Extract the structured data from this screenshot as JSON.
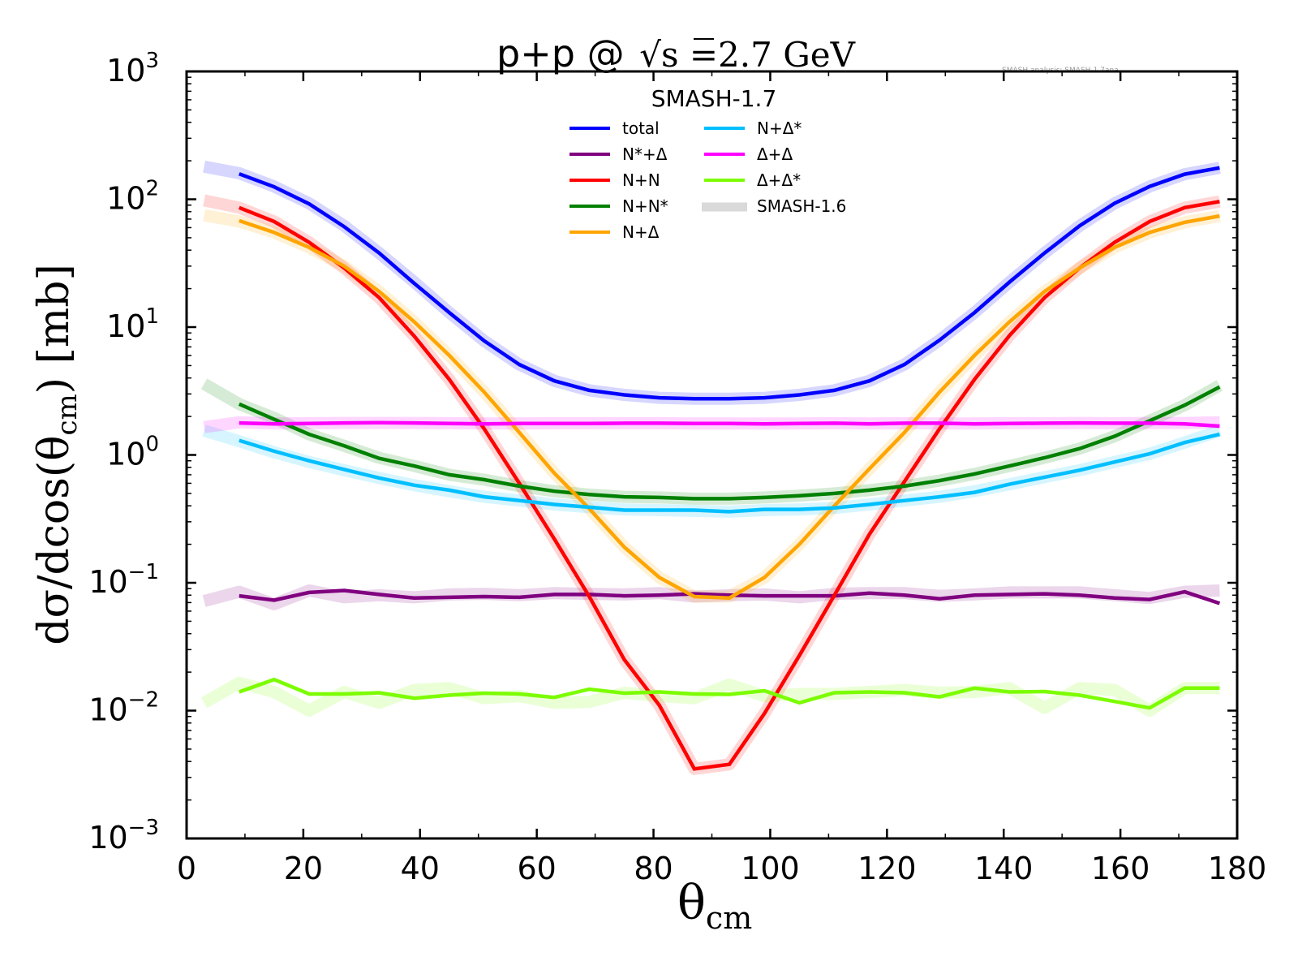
{
  "chart_data": {
    "type": "line",
    "title_prefix": "p+p @ ",
    "title_sqrt": "s",
    "title_suffix": " =2.7 GeV",
    "title": "p+p @ √s =2.7 GeV",
    "watermark": "SMASH analysis: SMASH-1.7ana",
    "xlabel_main": "θ",
    "xlabel_sub": "cm",
    "xlabel": "θ_cm",
    "ylabel_pre": "dσ/dcos(θ",
    "ylabel_sub": "cm",
    "ylabel_post": ") [mb]",
    "ylabel": "dσ/dcos(θ_cm) [mb]",
    "xlim": [
      0,
      180
    ],
    "ylim": [
      0.001,
      1000
    ],
    "yscale": "log",
    "grid": false,
    "x_ticks": [
      0,
      20,
      40,
      60,
      80,
      100,
      120,
      140,
      160,
      180
    ],
    "x_tick_labels": [
      "0",
      "20",
      "40",
      "60",
      "80",
      "100",
      "120",
      "140",
      "160",
      "180"
    ],
    "y_ticks": [
      {
        "value": 1000,
        "base": "10",
        "exp": "3"
      },
      {
        "value": 100,
        "base": "10",
        "exp": "2"
      },
      {
        "value": 10,
        "base": "10",
        "exp": "1"
      },
      {
        "value": 1,
        "base": "10",
        "exp": "0"
      },
      {
        "value": 0.1,
        "base": "10",
        "exp": "−1"
      },
      {
        "value": 0.01,
        "base": "10",
        "exp": "−2"
      },
      {
        "value": 0.001,
        "base": "10",
        "exp": "−3"
      }
    ],
    "legend": {
      "title": "SMASH-1.7",
      "placement": "top-center",
      "columns": [
        [
          "total",
          "N*+Δ",
          "N+N",
          "N+N*",
          "N+Δ"
        ],
        [
          "N+Δ*",
          "Δ+Δ",
          "Δ+Δ*",
          "SMASH-1.6"
        ]
      ],
      "reference_label": "SMASH-1.6",
      "reference_color": "#d9d9d9"
    },
    "x": [
      9,
      15,
      21,
      27,
      33,
      39,
      45,
      51,
      57,
      63,
      69,
      75,
      81,
      87,
      93,
      99,
      105,
      111,
      117,
      123,
      129,
      135,
      141,
      147,
      153,
      159,
      165,
      171,
      177
    ],
    "x_ref": [
      3,
      9,
      15,
      21,
      27,
      33,
      39,
      45,
      51,
      57,
      63,
      69,
      75,
      81,
      87,
      93,
      99,
      105,
      111,
      117,
      123,
      129,
      135,
      141,
      147,
      153,
      159,
      165,
      171,
      177
    ],
    "series": [
      {
        "name": "total",
        "color": "#0000ff",
        "values": [
          158,
          125,
          92,
          61,
          38,
          22,
          13,
          7.8,
          5.1,
          3.8,
          3.2,
          2.95,
          2.8,
          2.75,
          2.75,
          2.8,
          2.95,
          3.2,
          3.8,
          5.1,
          7.9,
          13,
          22.5,
          38,
          62,
          93,
          126,
          157,
          176
        ],
        "ref_values": [
          180,
          160,
          126,
          93,
          62,
          38,
          22.5,
          13,
          7.8,
          5.1,
          3.8,
          3.2,
          2.95,
          2.8,
          2.75,
          2.75,
          2.8,
          2.95,
          3.2,
          3.8,
          5.1,
          7.9,
          13,
          22.5,
          38,
          62,
          93,
          126,
          157,
          176
        ]
      },
      {
        "name": "N*+Δ",
        "color": "#800080",
        "values": [
          0.079,
          0.073,
          0.084,
          0.087,
          0.081,
          0.076,
          0.077,
          0.078,
          0.077,
          0.081,
          0.081,
          0.079,
          0.08,
          0.082,
          0.08,
          0.079,
          0.079,
          0.079,
          0.083,
          0.08,
          0.075,
          0.08,
          0.081,
          0.082,
          0.08,
          0.076,
          0.074,
          0.085,
          0.069
        ],
        "ref_values": [
          0.072,
          0.085,
          0.068,
          0.087,
          0.077,
          0.08,
          0.077,
          0.081,
          0.082,
          0.08,
          0.083,
          0.082,
          0.081,
          0.083,
          0.078,
          0.08,
          0.081,
          0.077,
          0.082,
          0.083,
          0.083,
          0.079,
          0.081,
          0.084,
          0.084,
          0.084,
          0.08,
          0.076,
          0.085,
          0.087
        ]
      },
      {
        "name": "N+N",
        "color": "#ff0000",
        "values": [
          86,
          67,
          46,
          29,
          17,
          8.5,
          3.9,
          1.6,
          0.6,
          0.22,
          0.078,
          0.025,
          0.011,
          0.0035,
          0.0038,
          0.0095,
          0.027,
          0.08,
          0.24,
          0.62,
          1.6,
          3.9,
          8.6,
          17,
          29,
          46,
          67,
          86,
          96
        ],
        "ref_values": [
          98,
          86,
          67,
          46,
          29,
          17,
          8.5,
          3.9,
          1.6,
          0.6,
          0.22,
          0.078,
          0.025,
          0.011,
          0.0035,
          0.0038,
          0.0095,
          0.027,
          0.08,
          0.24,
          0.62,
          1.6,
          3.9,
          8.6,
          17,
          29,
          46,
          67,
          86,
          96
        ]
      },
      {
        "name": "N+N*",
        "color": "#008000",
        "values": [
          2.5,
          1.9,
          1.45,
          1.18,
          0.94,
          0.82,
          0.7,
          0.64,
          0.57,
          0.52,
          0.49,
          0.47,
          0.465,
          0.455,
          0.455,
          0.465,
          0.48,
          0.5,
          0.53,
          0.57,
          0.63,
          0.71,
          0.82,
          0.95,
          1.12,
          1.4,
          1.85,
          2.45,
          3.4
        ],
        "ref_values": [
          3.6,
          2.5,
          1.95,
          1.45,
          1.18,
          0.95,
          0.82,
          0.7,
          0.64,
          0.57,
          0.52,
          0.49,
          0.47,
          0.465,
          0.455,
          0.455,
          0.465,
          0.48,
          0.5,
          0.53,
          0.57,
          0.63,
          0.71,
          0.82,
          0.95,
          1.12,
          1.4,
          1.85,
          2.45,
          3.5
        ]
      },
      {
        "name": "N+Δ",
        "color": "#ffa500",
        "values": [
          68,
          55,
          42,
          30,
          19,
          11,
          6.0,
          3.1,
          1.5,
          0.72,
          0.38,
          0.19,
          0.11,
          0.078,
          0.076,
          0.11,
          0.2,
          0.4,
          0.78,
          1.5,
          3.1,
          6.0,
          11,
          19,
          29,
          42,
          55,
          66,
          74
        ],
        "ref_values": [
          75,
          67,
          55,
          42,
          30,
          19,
          11,
          6.0,
          3.1,
          1.5,
          0.72,
          0.38,
          0.19,
          0.11,
          0.078,
          0.078,
          0.11,
          0.2,
          0.4,
          0.78,
          1.5,
          3.1,
          6.0,
          11,
          19,
          29,
          42,
          55,
          66,
          74
        ]
      },
      {
        "name": "N+Δ*",
        "color": "#00bfff",
        "values": [
          1.3,
          1.07,
          0.9,
          0.77,
          0.66,
          0.58,
          0.53,
          0.47,
          0.44,
          0.41,
          0.39,
          0.37,
          0.37,
          0.37,
          0.36,
          0.375,
          0.375,
          0.385,
          0.41,
          0.44,
          0.47,
          0.51,
          0.59,
          0.67,
          0.76,
          0.88,
          1.02,
          1.25,
          1.45
        ],
        "ref_values": [
          1.55,
          1.28,
          1.05,
          0.88,
          0.76,
          0.66,
          0.58,
          0.52,
          0.47,
          0.44,
          0.41,
          0.39,
          0.375,
          0.37,
          0.365,
          0.36,
          0.37,
          0.375,
          0.385,
          0.41,
          0.44,
          0.47,
          0.52,
          0.59,
          0.67,
          0.76,
          0.88,
          1.02,
          1.25,
          1.55
        ]
      },
      {
        "name": "Δ+Δ",
        "color": "#ff00ff",
        "values": [
          1.78,
          1.75,
          1.76,
          1.78,
          1.79,
          1.78,
          1.76,
          1.75,
          1.76,
          1.76,
          1.76,
          1.77,
          1.77,
          1.76,
          1.76,
          1.75,
          1.76,
          1.77,
          1.75,
          1.77,
          1.77,
          1.75,
          1.76,
          1.77,
          1.78,
          1.77,
          1.77,
          1.75,
          1.68
        ],
        "ref_values": [
          1.65,
          1.8,
          1.76,
          1.77,
          1.78,
          1.78,
          1.78,
          1.77,
          1.76,
          1.76,
          1.77,
          1.77,
          1.77,
          1.77,
          1.76,
          1.76,
          1.76,
          1.76,
          1.77,
          1.76,
          1.77,
          1.76,
          1.76,
          1.77,
          1.77,
          1.78,
          1.77,
          1.78,
          1.78,
          1.8
        ]
      },
      {
        "name": "Δ+Δ*",
        "color": "#7cfc00",
        "values": [
          0.014,
          0.0175,
          0.0135,
          0.0135,
          0.0138,
          0.0125,
          0.0132,
          0.0137,
          0.0135,
          0.0127,
          0.0147,
          0.0137,
          0.014,
          0.0135,
          0.0134,
          0.0143,
          0.0115,
          0.0138,
          0.014,
          0.0138,
          0.0128,
          0.015,
          0.014,
          0.0141,
          0.0132,
          0.0118,
          0.0105,
          0.015,
          0.015
        ],
        "ref_values": [
          0.0115,
          0.0165,
          0.014,
          0.01,
          0.014,
          0.0115,
          0.0145,
          0.015,
          0.0125,
          0.013,
          0.0115,
          0.0117,
          0.0138,
          0.013,
          0.0125,
          0.016,
          0.013,
          0.0135,
          0.0135,
          0.014,
          0.0145,
          0.0138,
          0.014,
          0.015,
          0.0105,
          0.015,
          0.0145,
          0.01,
          0.015,
          0.015
        ]
      }
    ]
  }
}
